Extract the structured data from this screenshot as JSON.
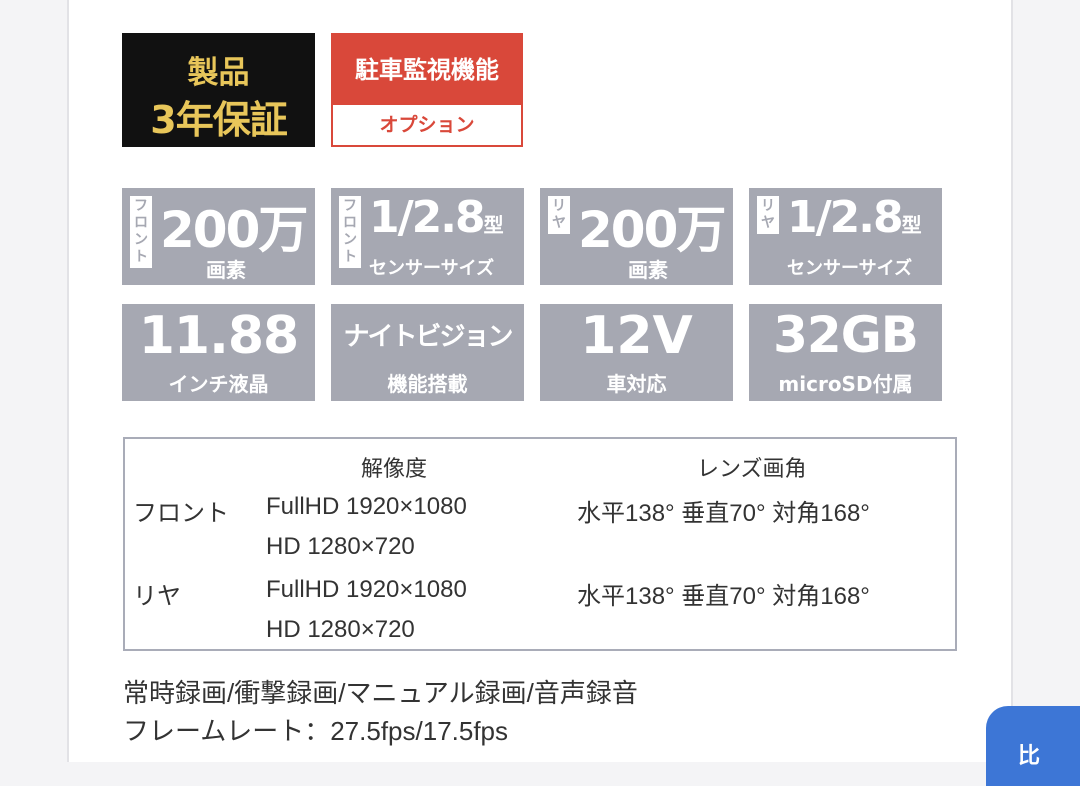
{
  "badges": {
    "warranty": {
      "line1": "製品",
      "line2": "3年保証"
    },
    "parking": {
      "title": "駐車監視機能",
      "sub": "オプション"
    }
  },
  "tiles": [
    {
      "tag": [
        "フ",
        "ロ",
        "ン",
        "ト"
      ],
      "big": "200万",
      "suffix": "",
      "small": "画素"
    },
    {
      "tag": [
        "フ",
        "ロ",
        "ン",
        "ト"
      ],
      "big": "1/2.8",
      "suffix": "型",
      "small": "センサーサイズ"
    },
    {
      "tag": [
        "リ",
        "ヤ"
      ],
      "big": "200万",
      "suffix": "",
      "small": "画素"
    },
    {
      "tag": [
        "リ",
        "ヤ"
      ],
      "big": "1/2.8",
      "suffix": "型",
      "small": "センサーサイズ"
    },
    {
      "big": "11.88",
      "small": "インチ液晶"
    },
    {
      "big": "ナイトビジョン",
      "small": "機能搭載"
    },
    {
      "big": "12V",
      "small": "車対応"
    },
    {
      "big": "32GB",
      "small": "microSD付属"
    }
  ],
  "spec_table": {
    "headers": {
      "resolution": "解像度",
      "lens": "レンズ画角"
    },
    "rows": [
      {
        "label": "フロント",
        "res1": "FullHD 1920×1080",
        "res2": "HD 1280×720",
        "angle": "水平138° 垂直70° 対角168°"
      },
      {
        "label": "リヤ",
        "res1": "FullHD 1920×1080",
        "res2": "HD 1280×720",
        "angle": "水平138° 垂直70° 対角168°"
      }
    ]
  },
  "footer": {
    "line1": "常時録画/衝撃録画/マニュアル録画/音声録音",
    "line2": "フレームレート：27.5fps/17.5fps"
  },
  "corner_button": {
    "label": "比"
  },
  "colors": {
    "tile_bg": "#a6a8b2",
    "warranty_bg": "#111111",
    "warranty_text": "#e8c65a",
    "parking_red": "#d9483a",
    "accent_blue": "#3d76d6"
  }
}
